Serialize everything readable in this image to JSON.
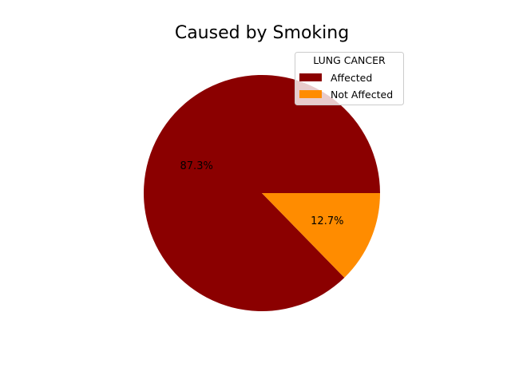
{
  "chart_data": {
    "type": "pie",
    "title": "Caused by Smoking",
    "legend": {
      "title": "LUNG CANCER",
      "placement": "upper-right"
    },
    "slices": [
      {
        "label": "Affected",
        "value": 87.3,
        "pct_label": "87.3%",
        "color": "#8b0000"
      },
      {
        "label": "Not Affected",
        "value": 12.7,
        "pct_label": "12.7%",
        "color": "#ff8c00"
      }
    ],
    "start_angle_deg": 0,
    "direction": "counterclockwise"
  }
}
